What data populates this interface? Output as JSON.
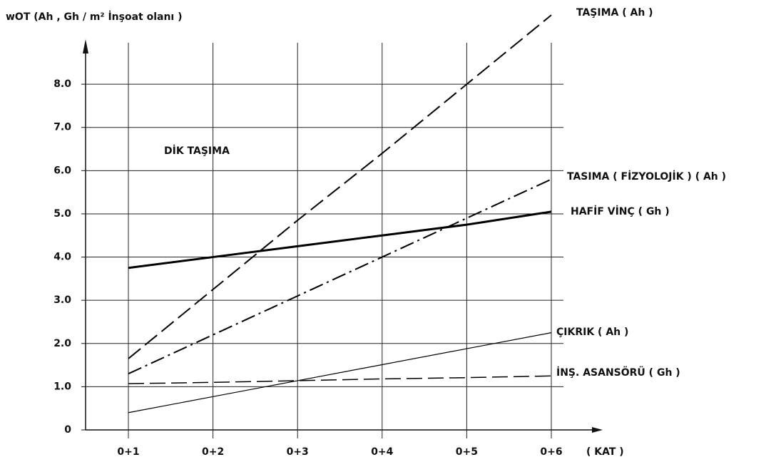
{
  "chart_data": {
    "type": "line",
    "y_label": "wOT (Ah , Gh / m² İnşoat olanı )",
    "x_label": "( KAT )",
    "annotation": "DİK TAŞIMA",
    "categories": [
      "0+1",
      "0+2",
      "0+3",
      "0+4",
      "0+5",
      "0+6"
    ],
    "series": [
      {
        "name": "TAŞIMA ( Ah )",
        "color": "#000000",
        "linestyle": "dashed",
        "values": [
          1.65,
          3.25,
          4.85,
          6.4,
          8.0,
          9.6
        ]
      },
      {
        "name": "TASIMA ( FİZYOLOJİK ) ( Ah )",
        "color": "#000000",
        "linestyle": "dashdot",
        "values": [
          1.3,
          2.2,
          3.1,
          4.0,
          4.9,
          5.8
        ]
      },
      {
        "name": "HAFİF VİNÇ ( Gh )",
        "color": "#000000",
        "linestyle": "solid",
        "values": [
          3.75,
          4.0,
          4.25,
          4.5,
          4.75,
          5.05
        ]
      },
      {
        "name": "ÇIKRIK ( Ah )",
        "color": "#000000",
        "linestyle": "solid",
        "values": [
          0.4,
          0.77,
          1.14,
          1.51,
          1.88,
          2.25
        ]
      },
      {
        "name": "İNŞ. ASANSÖRÜ ( Gh )",
        "color": "#000000",
        "linestyle": "dashed",
        "values": [
          1.07,
          1.1,
          1.14,
          1.18,
          1.21,
          1.25
        ]
      }
    ],
    "ylim": [
      0,
      9.8
    ],
    "yticks": [
      0,
      {
        "value": 1,
        "label": "1.0"
      },
      {
        "value": 2,
        "label": "2.0"
      },
      {
        "value": 3,
        "label": "3.0"
      },
      {
        "value": 4,
        "label": "4.0"
      },
      {
        "value": 5,
        "label": "5.0"
      },
      {
        "value": 6,
        "label": "6.0"
      },
      {
        "value": 7,
        "label": "7.0"
      },
      {
        "value": 8,
        "label": "8.0"
      }
    ],
    "grid": true
  }
}
